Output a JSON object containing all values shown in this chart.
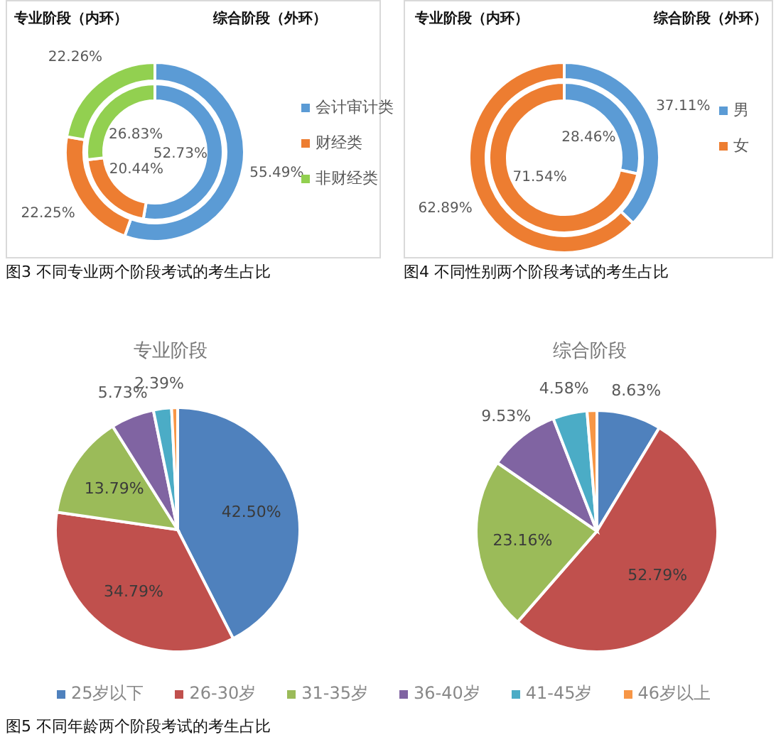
{
  "chart_data": [
    {
      "type": "donut",
      "categories": [
        "会计审计类",
        "财经类",
        "非财经类"
      ],
      "colors": [
        "#5b9bd5",
        "#ed7d31",
        "#92d050"
      ],
      "series": [
        {
          "values": [
            52.73,
            20.44,
            26.83
          ],
          "value_labels": [
            "52.73%",
            "20.44%",
            "26.83%"
          ]
        },
        {
          "values": [
            55.49,
            22.25,
            22.26
          ],
          "value_labels": [
            "55.49%",
            "22.25%",
            "22.26%"
          ]
        }
      ],
      "legend": "right",
      "annotations": [
        "专业阶段（内环）",
        "综合阶段（外环）",
        "图3  不同专业两个阶段考试的考生占比"
      ]
    },
    {
      "type": "donut",
      "categories": [
        "男",
        "女"
      ],
      "colors": [
        "#5b9bd5",
        "#ed7d31"
      ],
      "series": [
        {
          "values": [
            28.46,
            71.54
          ],
          "value_labels": [
            "28.46%",
            "71.54%"
          ]
        },
        {
          "values": [
            37.11,
            62.89
          ],
          "value_labels": [
            "37.11%",
            "62.89%"
          ]
        }
      ],
      "legend": "right",
      "annotations": [
        "专业阶段（内环）",
        "综合阶段（外环）",
        "图4  不同性别两个阶段考试的考生占比"
      ]
    },
    {
      "type": "pie",
      "categories": [
        "25岁以下",
        "26-30岁",
        "31-35岁",
        "36-40岁",
        "41-45岁",
        "46岁以上"
      ],
      "colors": [
        "#4f81bd",
        "#c0504d",
        "#9bbb59",
        "#8064a2",
        "#4bacc6",
        "#f79646"
      ],
      "series": [
        {
          "name": "专业阶段",
          "values": [
            42.5,
            34.79,
            13.79,
            5.73,
            2.39,
            0.8
          ],
          "value_labels": [
            "42.50%",
            "34.79%",
            "13.79%",
            "5.73%",
            "2.39%",
            null
          ]
        },
        {
          "name": "综合阶段",
          "values": [
            8.63,
            52.79,
            23.16,
            9.53,
            4.58,
            1.31
          ],
          "value_labels": [
            "8.63%",
            "52.79%",
            "23.16%",
            "9.53%",
            "4.58%",
            null
          ]
        }
      ],
      "legend": "bottom",
      "annotations": [
        "图5  不同年龄两个阶段考试的考生占比"
      ]
    }
  ]
}
